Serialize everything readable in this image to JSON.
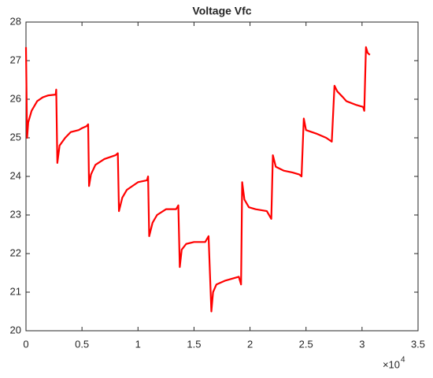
{
  "chart_data": {
    "type": "line",
    "title": "Voltage Vfc",
    "x": [
      0,
      0.01,
      0.02,
      0.05,
      0.1,
      0.15,
      0.2,
      0.265,
      0.27,
      0.28,
      0.3,
      0.35,
      0.4,
      0.47,
      0.5,
      0.54,
      0.555,
      0.563,
      0.58,
      0.62,
      0.7,
      0.8,
      0.82,
      0.83,
      0.86,
      0.9,
      0.95,
      1.0,
      1.08,
      1.09,
      1.1,
      1.13,
      1.17,
      1.25,
      1.34,
      1.36,
      1.373,
      1.39,
      1.43,
      1.5,
      1.6,
      1.63,
      1.655,
      1.67,
      1.7,
      1.78,
      1.9,
      1.92,
      1.93,
      1.95,
      1.99,
      2.05,
      2.15,
      2.19,
      2.204,
      2.23,
      2.3,
      2.38,
      2.44,
      2.46,
      2.48,
      2.5,
      2.6,
      2.68,
      2.73,
      2.754,
      2.78,
      2.83,
      2.86,
      2.95,
      3.01,
      3.02,
      3.035,
      3.05,
      3.07
    ],
    "values": [
      27.35,
      25.0,
      25.4,
      25.7,
      25.95,
      26.05,
      26.1,
      26.12,
      26.25,
      24.35,
      24.8,
      25.0,
      25.15,
      25.2,
      25.25,
      25.3,
      25.35,
      23.75,
      24.05,
      24.3,
      24.45,
      24.55,
      24.6,
      23.1,
      23.45,
      23.65,
      23.75,
      23.85,
      23.9,
      24.0,
      22.45,
      22.8,
      23.0,
      23.15,
      23.15,
      23.25,
      21.65,
      22.1,
      22.25,
      22.3,
      22.3,
      22.45,
      20.5,
      21.0,
      21.2,
      21.3,
      21.4,
      21.2,
      23.85,
      23.4,
      23.2,
      23.15,
      23.1,
      22.9,
      24.55,
      24.25,
      24.15,
      24.1,
      24.05,
      24.0,
      25.5,
      25.2,
      25.1,
      25.0,
      24.9,
      26.35,
      26.2,
      26.05,
      25.95,
      25.85,
      25.8,
      25.7,
      27.35,
      27.2,
      27.15
    ],
    "color": "#ff0000",
    "xlim": [
      0,
      3.5
    ],
    "xticks": [
      0,
      0.5,
      1,
      1.5,
      2,
      2.5,
      3,
      3.5
    ],
    "ylim": [
      20,
      28
    ],
    "yticks": [
      20,
      21,
      22,
      23,
      24,
      25,
      26,
      27,
      28
    ],
    "x_exponent_base": "×10",
    "x_exponent": "4"
  }
}
